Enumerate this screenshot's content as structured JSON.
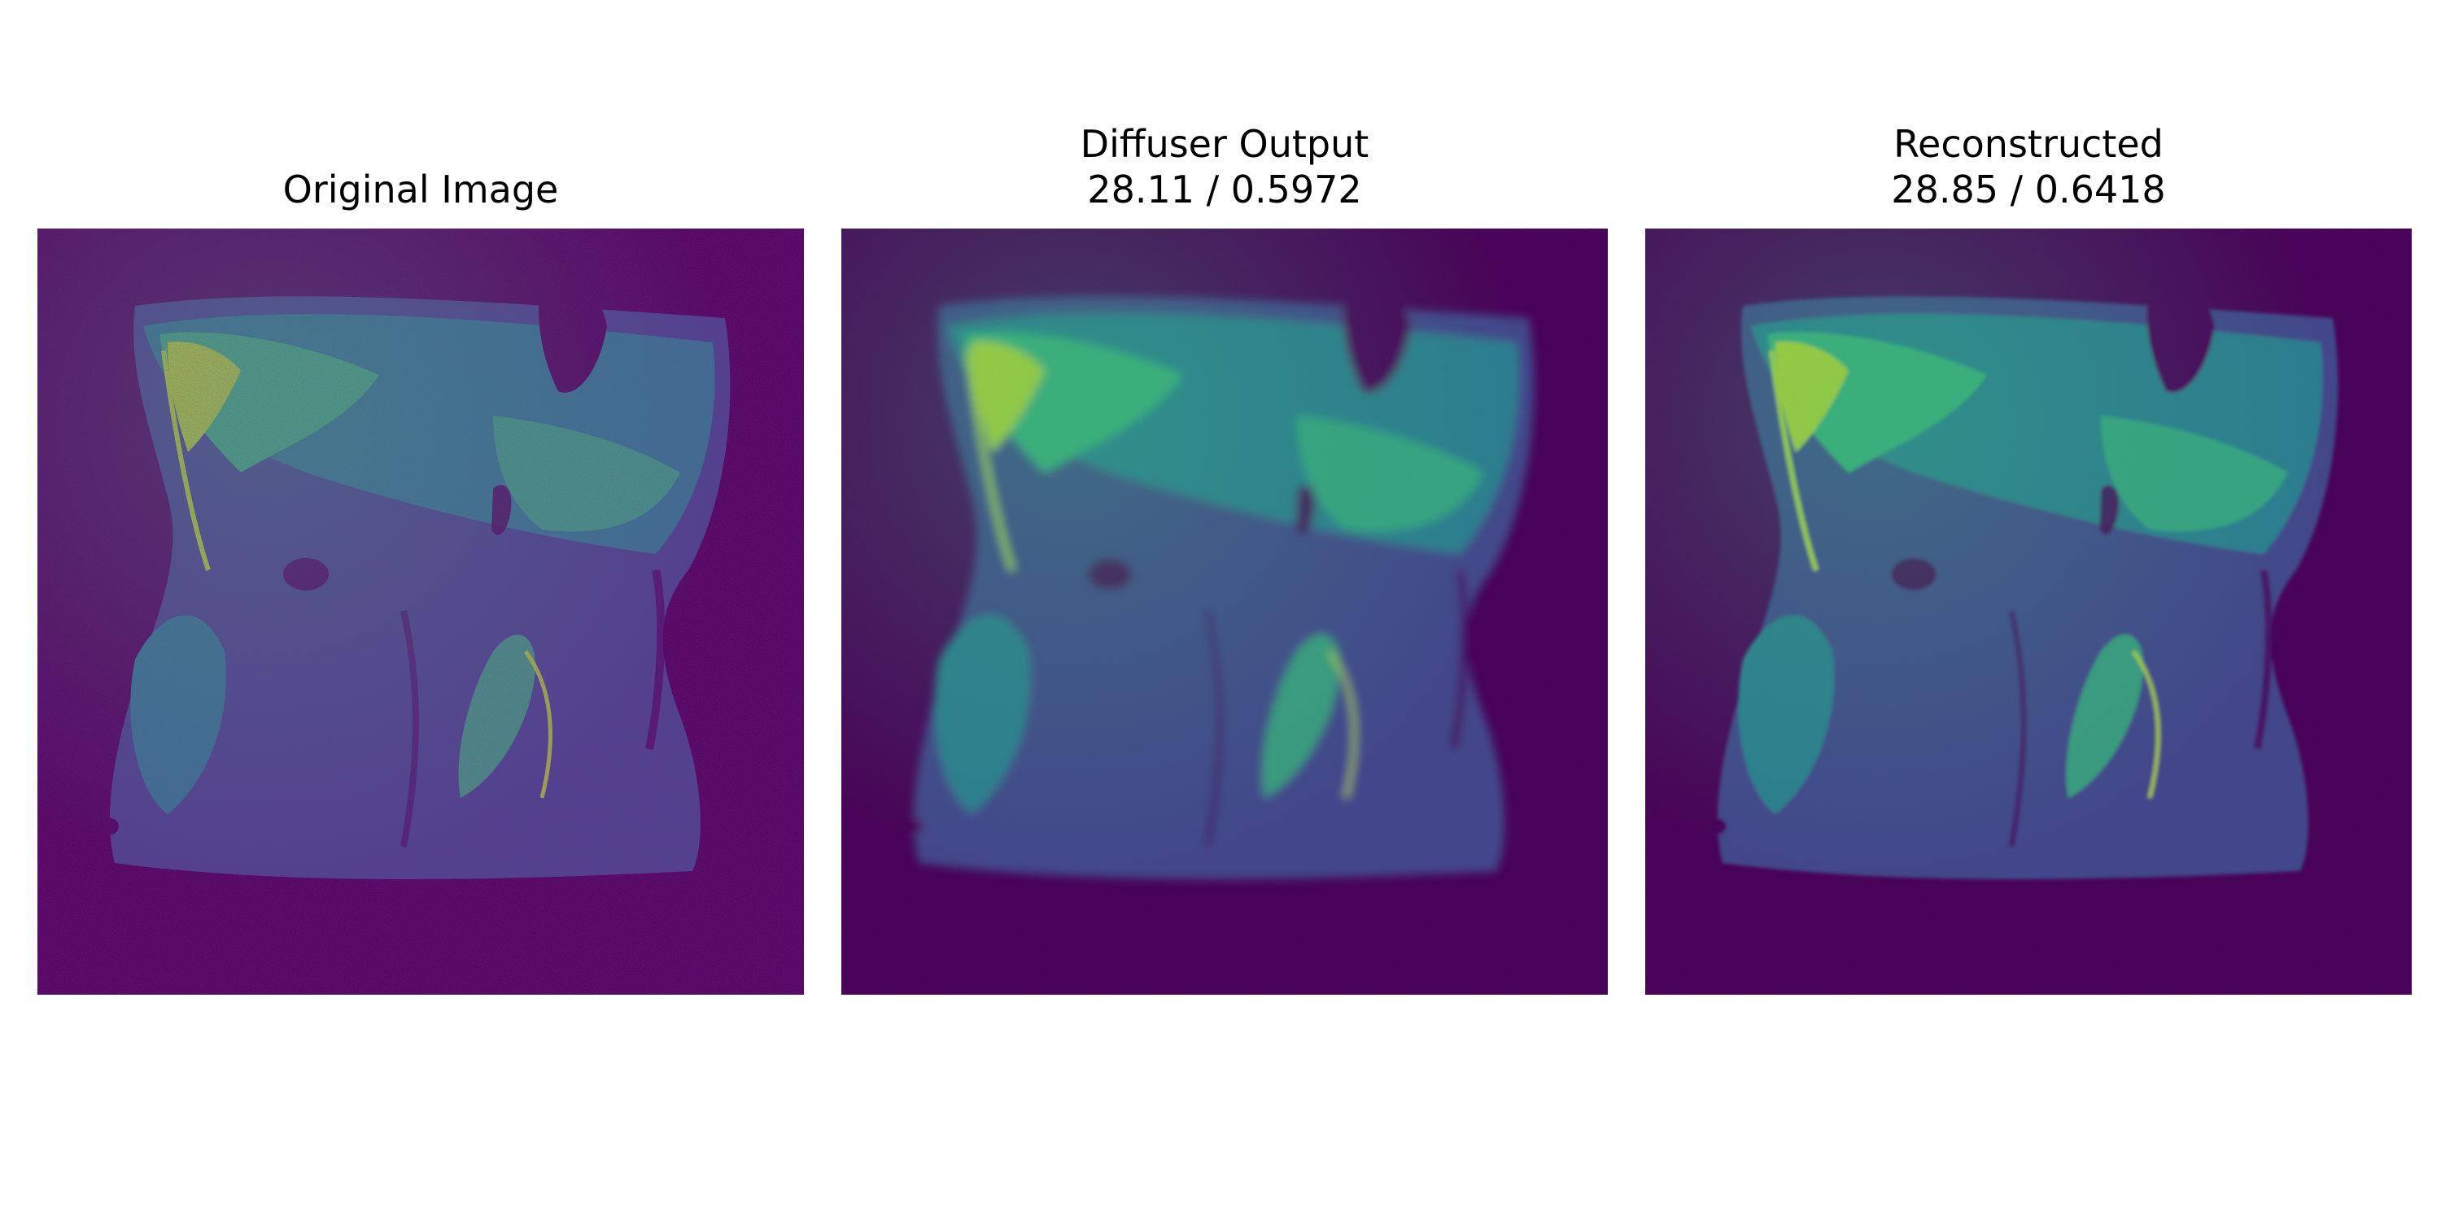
{
  "figure": {
    "colormap": {
      "name": "viridis",
      "background": "#440154",
      "low": "#3e4a89",
      "mid": "#26828e",
      "high": "#35b779",
      "peak": "#b5de2b"
    },
    "panels": [
      {
        "title": "Original Image",
        "subtitle": "",
        "noise": "high",
        "blur": "none"
      },
      {
        "title": "Diffuser Output",
        "subtitle": "28.11 / 0.5972",
        "noise": "low",
        "blur": "strong"
      },
      {
        "title": "Reconstructed",
        "subtitle": "28.85 / 0.6418",
        "noise": "low",
        "blur": "mild"
      }
    ]
  }
}
